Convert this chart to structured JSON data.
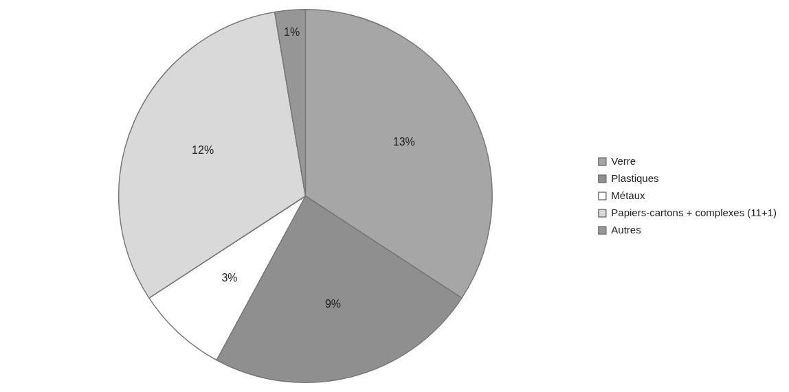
{
  "chart_data": {
    "type": "pie",
    "categories": [
      "Verre",
      "Plastiques",
      "Métaux",
      "Papiers-cartons + complexes (11+1)",
      "Autres"
    ],
    "values": [
      13,
      9,
      3,
      12,
      1
    ],
    "colors": [
      "#a6a6a6",
      "#8f8f8f",
      "#ffffff",
      "#d9d9d9",
      "#969696"
    ],
    "value_labels": [
      "13%",
      "9%",
      "3%",
      "12%",
      "1%"
    ],
    "legend": "right"
  }
}
